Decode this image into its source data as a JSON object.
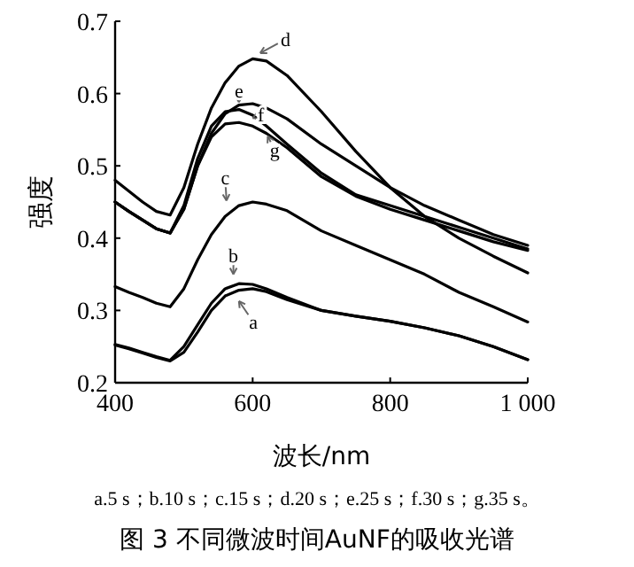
{
  "chart_data": {
    "type": "line",
    "title": "图 3 不同微波时间AuNF的吸收光谱",
    "xlabel": "波长/nm",
    "ylabel": "强度",
    "x": [
      400,
      420,
      440,
      460,
      480,
      500,
      520,
      540,
      560,
      580,
      600,
      620,
      650,
      700,
      750,
      800,
      850,
      900,
      950,
      1000
    ],
    "series": [
      {
        "name": "a",
        "color": "#000000",
        "values": [
          0.252,
          0.247,
          0.241,
          0.235,
          0.23,
          0.242,
          0.27,
          0.3,
          0.32,
          0.328,
          0.33,
          0.326,
          0.315,
          0.3,
          0.292,
          0.285,
          0.276,
          0.265,
          0.25,
          0.232
        ]
      },
      {
        "name": "b",
        "color": "#000000",
        "values": [
          0.253,
          0.248,
          0.242,
          0.236,
          0.231,
          0.25,
          0.28,
          0.31,
          0.33,
          0.337,
          0.336,
          0.33,
          0.318,
          0.3,
          0.292,
          0.285,
          0.276,
          0.265,
          0.25,
          0.232
        ]
      },
      {
        "name": "c",
        "color": "#000000",
        "values": [
          0.333,
          0.325,
          0.318,
          0.31,
          0.305,
          0.33,
          0.37,
          0.405,
          0.43,
          0.445,
          0.45,
          0.447,
          0.438,
          0.41,
          0.39,
          0.37,
          0.35,
          0.325,
          0.305,
          0.284
        ]
      },
      {
        "name": "d",
        "color": "#000000",
        "values": [
          0.48,
          0.465,
          0.45,
          0.437,
          0.432,
          0.47,
          0.53,
          0.58,
          0.615,
          0.638,
          0.648,
          0.645,
          0.625,
          0.575,
          0.52,
          0.47,
          0.43,
          0.4,
          0.375,
          0.352
        ]
      },
      {
        "name": "e",
        "color": "#000000",
        "values": [
          0.45,
          0.437,
          0.425,
          0.413,
          0.407,
          0.44,
          0.5,
          0.545,
          0.572,
          0.584,
          0.586,
          0.58,
          0.565,
          0.53,
          0.5,
          0.47,
          0.445,
          0.425,
          0.405,
          0.39
        ]
      },
      {
        "name": "f",
        "color": "#000000",
        "values": [
          0.45,
          0.437,
          0.425,
          0.413,
          0.407,
          0.445,
          0.51,
          0.555,
          0.575,
          0.578,
          0.57,
          0.555,
          0.53,
          0.49,
          0.46,
          0.445,
          0.43,
          0.415,
          0.4,
          0.385
        ]
      },
      {
        "name": "g",
        "color": "#000000",
        "values": [
          0.45,
          0.437,
          0.425,
          0.413,
          0.407,
          0.44,
          0.5,
          0.54,
          0.558,
          0.56,
          0.555,
          0.545,
          0.525,
          0.485,
          0.458,
          0.44,
          0.425,
          0.41,
          0.395,
          0.383
        ]
      }
    ],
    "xlim": [
      400,
      1000
    ],
    "ylim": [
      0.2,
      0.7
    ],
    "xticks": [
      400,
      600,
      800,
      {
        "value": 1000,
        "label": "1 000"
      }
    ],
    "yticks": [
      0.2,
      0.3,
      0.4,
      0.5,
      0.6,
      0.7
    ],
    "grid": false,
    "legend": false,
    "marker": "none",
    "line_style": "solid",
    "annotations": [
      "a.5 s；b.10 s；c.15 s；d.20 s；e.25 s；f.30 s；g.35 s。"
    ]
  }
}
